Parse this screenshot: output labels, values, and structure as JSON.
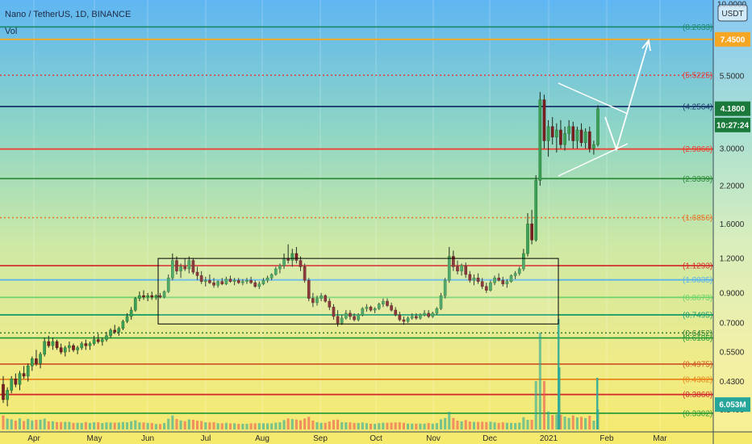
{
  "header": {
    "symbol_line": "Nano / TetherUS, 1D, BINANCE",
    "volume_label": "Vol",
    "currency_badge": "USDT"
  },
  "chart_data": {
    "type": "candlestick",
    "title": "Nano / TetherUS, 1D, BINANCE",
    "y_scale": "log",
    "ylim": [
      0.33,
      10.0
    ],
    "y_ticks": [
      {
        "value": 10.0,
        "label": "10.0000"
      },
      {
        "value": 5.5,
        "label": "5.5000"
      },
      {
        "value": 3.0,
        "label": "3.0000"
      },
      {
        "value": 2.2,
        "label": "2.2000"
      },
      {
        "value": 1.6,
        "label": "1.6000"
      },
      {
        "value": 1.2,
        "label": "1.2000"
      },
      {
        "value": 0.9,
        "label": "0.9000"
      },
      {
        "value": 0.7,
        "label": "0.7000"
      },
      {
        "value": 0.55,
        "label": "0.5500"
      },
      {
        "value": 0.43,
        "label": "0.4300"
      },
      {
        "value": 0.34,
        "label": "0.3400"
      }
    ],
    "x_ticks": [
      "Apr",
      "May",
      "Jun",
      "Jul",
      "Aug",
      "Sep",
      "Oct",
      "Nov",
      "Dec",
      "2021",
      "Feb",
      "Mar"
    ],
    "fib_levels": [
      {
        "value": 8.2633,
        "label": "(8.2633)",
        "color": "#1e8a6e",
        "style": "solid"
      },
      {
        "value": 5.5225,
        "label": "(5.5225)",
        "color": "#e53935",
        "style": "dotted"
      },
      {
        "value": 4.2564,
        "label": "(4.2564)",
        "color": "#1c3d6e",
        "style": "solid"
      },
      {
        "value": 2.9866,
        "label": "(2.9866)",
        "color": "#ef3b2c",
        "style": "solid"
      },
      {
        "value": 2.3339,
        "label": "(2.3339)",
        "color": "#2e8b3a",
        "style": "solid"
      },
      {
        "value": 1.6856,
        "label": "(1.6856)",
        "color": "#e6762a",
        "style": "dotted"
      },
      {
        "value": 1.1293,
        "label": "(1.1293)",
        "color": "#d32f2f",
        "style": "solid"
      },
      {
        "value": 1.0035,
        "label": "(1.0035)",
        "color": "#5ab4e8",
        "style": "solid"
      },
      {
        "value": 0.8673,
        "label": "(0.8673)",
        "color": "#6ed36e",
        "style": "solid"
      },
      {
        "value": 0.7495,
        "label": "(0.7495)",
        "color": "#1f9e6a",
        "style": "solid"
      },
      {
        "value": 0.6452,
        "label": "(0.6452)",
        "color": "#2e7d32",
        "style": "dotted"
      },
      {
        "value": 0.6186,
        "label": "(0.6186)",
        "color": "#2e9b3a",
        "style": "solid"
      },
      {
        "value": 0.4975,
        "label": "(0.4975)",
        "color": "#d05a2a",
        "style": "solid"
      },
      {
        "value": 0.4382,
        "label": "(0.4382)",
        "color": "#e8861c",
        "style": "solid"
      },
      {
        "value": 0.386,
        "label": "(0.3860)",
        "color": "#d32f2f",
        "style": "solid"
      },
      {
        "value": 0.3302,
        "label": "(0.3302)",
        "color": "#2e9b3a",
        "style": "solid"
      }
    ],
    "price_tags": [
      {
        "value": 7.45,
        "label": "7.4500",
        "color": "#f5a623"
      },
      {
        "value": 4.18,
        "label": "4.1800",
        "color": "#1b7a3b"
      },
      {
        "value": 3.65,
        "label": "10:27:24",
        "color": "#1b7a3b"
      },
      {
        "value": 0.355,
        "label": "6.053M",
        "color": "#26a69a"
      }
    ],
    "target_level": 7.45,
    "candles_ohlc": [
      [
        0.42,
        0.45,
        0.36,
        0.37
      ],
      [
        0.37,
        0.41,
        0.35,
        0.4
      ],
      [
        0.4,
        0.45,
        0.39,
        0.44
      ],
      [
        0.44,
        0.46,
        0.41,
        0.42
      ],
      [
        0.42,
        0.47,
        0.4,
        0.46
      ],
      [
        0.46,
        0.49,
        0.44,
        0.45
      ],
      [
        0.45,
        0.5,
        0.43,
        0.49
      ],
      [
        0.49,
        0.53,
        0.47,
        0.52
      ],
      [
        0.52,
        0.56,
        0.49,
        0.5
      ],
      [
        0.5,
        0.55,
        0.48,
        0.54
      ],
      [
        0.54,
        0.62,
        0.53,
        0.6
      ],
      [
        0.6,
        0.63,
        0.57,
        0.58
      ],
      [
        0.58,
        0.62,
        0.56,
        0.6
      ],
      [
        0.6,
        0.61,
        0.56,
        0.57
      ],
      [
        0.57,
        0.59,
        0.54,
        0.55
      ],
      [
        0.55,
        0.58,
        0.53,
        0.57
      ],
      [
        0.57,
        0.6,
        0.55,
        0.58
      ],
      [
        0.58,
        0.59,
        0.55,
        0.56
      ],
      [
        0.56,
        0.58,
        0.54,
        0.57
      ],
      [
        0.57,
        0.6,
        0.56,
        0.59
      ],
      [
        0.59,
        0.61,
        0.56,
        0.58
      ],
      [
        0.58,
        0.6,
        0.56,
        0.59
      ],
      [
        0.59,
        0.63,
        0.58,
        0.61
      ],
      [
        0.61,
        0.64,
        0.59,
        0.6
      ],
      [
        0.6,
        0.62,
        0.58,
        0.61
      ],
      [
        0.61,
        0.65,
        0.6,
        0.63
      ],
      [
        0.63,
        0.67,
        0.62,
        0.66
      ],
      [
        0.66,
        0.69,
        0.64,
        0.65
      ],
      [
        0.65,
        0.68,
        0.63,
        0.67
      ],
      [
        0.67,
        0.72,
        0.66,
        0.71
      ],
      [
        0.71,
        0.76,
        0.7,
        0.74
      ],
      [
        0.74,
        0.8,
        0.72,
        0.78
      ],
      [
        0.78,
        0.87,
        0.77,
        0.86
      ],
      [
        0.86,
        0.91,
        0.84,
        0.88
      ],
      [
        0.88,
        0.92,
        0.85,
        0.87
      ],
      [
        0.87,
        0.9,
        0.84,
        0.88
      ],
      [
        0.88,
        0.91,
        0.85,
        0.87
      ],
      [
        0.87,
        0.89,
        0.85,
        0.88
      ],
      [
        0.88,
        0.9,
        0.86,
        0.87
      ],
      [
        0.87,
        0.92,
        0.86,
        0.91
      ],
      [
        0.91,
        1.05,
        0.9,
        1.02
      ],
      [
        1.02,
        1.25,
        1.0,
        1.18
      ],
      [
        1.18,
        1.22,
        1.05,
        1.08
      ],
      [
        1.08,
        1.15,
        1.02,
        1.12
      ],
      [
        1.12,
        1.2,
        1.08,
        1.1
      ],
      [
        1.1,
        1.22,
        1.06,
        1.18
      ],
      [
        1.18,
        1.2,
        1.05,
        1.07
      ],
      [
        1.07,
        1.12,
        1.0,
        1.04
      ],
      [
        1.04,
        1.08,
        0.97,
        0.99
      ],
      [
        0.99,
        1.03,
        0.95,
        1.0
      ],
      [
        1.0,
        1.05,
        0.97,
        0.98
      ],
      [
        0.98,
        1.02,
        0.94,
        0.96
      ],
      [
        0.96,
        1.0,
        0.94,
        0.99
      ],
      [
        0.99,
        1.02,
        0.96,
        0.97
      ],
      [
        0.97,
        1.03,
        0.96,
        1.01
      ],
      [
        1.01,
        1.04,
        0.98,
        0.99
      ],
      [
        0.99,
        1.02,
        0.96,
        1.0
      ],
      [
        1.0,
        1.02,
        0.97,
        0.98
      ],
      [
        0.98,
        1.01,
        0.96,
        0.99
      ],
      [
        0.99,
        1.02,
        0.97,
        1.0
      ],
      [
        1.0,
        1.03,
        0.97,
        0.98
      ],
      [
        0.98,
        1.0,
        0.94,
        0.95
      ],
      [
        0.95,
        0.99,
        0.93,
        0.97
      ],
      [
        0.97,
        1.02,
        0.96,
        1.0
      ],
      [
        1.0,
        1.04,
        0.98,
        1.02
      ],
      [
        1.02,
        1.06,
        1.0,
        1.05
      ],
      [
        1.05,
        1.12,
        1.04,
        1.1
      ],
      [
        1.1,
        1.15,
        1.06,
        1.13
      ],
      [
        1.13,
        1.25,
        1.1,
        1.2
      ],
      [
        1.2,
        1.35,
        1.15,
        1.18
      ],
      [
        1.18,
        1.3,
        1.12,
        1.25
      ],
      [
        1.25,
        1.32,
        1.15,
        1.18
      ],
      [
        1.18,
        1.22,
        1.08,
        1.12
      ],
      [
        1.12,
        1.15,
        0.98,
        1.0
      ],
      [
        1.0,
        1.02,
        0.84,
        0.86
      ],
      [
        0.86,
        0.9,
        0.8,
        0.83
      ],
      [
        0.83,
        0.88,
        0.81,
        0.86
      ],
      [
        0.86,
        0.9,
        0.84,
        0.88
      ],
      [
        0.88,
        0.89,
        0.83,
        0.84
      ],
      [
        0.84,
        0.86,
        0.78,
        0.8
      ],
      [
        0.8,
        0.82,
        0.72,
        0.74
      ],
      [
        0.74,
        0.78,
        0.68,
        0.7
      ],
      [
        0.7,
        0.75,
        0.69,
        0.73
      ],
      [
        0.73,
        0.78,
        0.72,
        0.76
      ],
      [
        0.76,
        0.78,
        0.72,
        0.74
      ],
      [
        0.74,
        0.76,
        0.71,
        0.72
      ],
      [
        0.72,
        0.76,
        0.71,
        0.75
      ],
      [
        0.75,
        0.8,
        0.74,
        0.79
      ],
      [
        0.79,
        0.82,
        0.77,
        0.8
      ],
      [
        0.8,
        0.81,
        0.77,
        0.78
      ],
      [
        0.78,
        0.8,
        0.76,
        0.79
      ],
      [
        0.79,
        0.83,
        0.78,
        0.82
      ],
      [
        0.82,
        0.86,
        0.8,
        0.84
      ],
      [
        0.84,
        0.86,
        0.8,
        0.81
      ],
      [
        0.81,
        0.83,
        0.77,
        0.78
      ],
      [
        0.78,
        0.8,
        0.74,
        0.75
      ],
      [
        0.75,
        0.77,
        0.71,
        0.72
      ],
      [
        0.72,
        0.74,
        0.69,
        0.71
      ],
      [
        0.71,
        0.74,
        0.7,
        0.73
      ],
      [
        0.73,
        0.76,
        0.72,
        0.74
      ],
      [
        0.74,
        0.76,
        0.72,
        0.73
      ],
      [
        0.73,
        0.76,
        0.72,
        0.75
      ],
      [
        0.75,
        0.78,
        0.74,
        0.76
      ],
      [
        0.76,
        0.78,
        0.73,
        0.74
      ],
      [
        0.74,
        0.77,
        0.73,
        0.76
      ],
      [
        0.76,
        0.8,
        0.75,
        0.79
      ],
      [
        0.79,
        0.9,
        0.78,
        0.88
      ],
      [
        0.88,
        1.02,
        0.86,
        1.0
      ],
      [
        1.0,
        1.32,
        0.98,
        1.22
      ],
      [
        1.22,
        1.28,
        1.08,
        1.12
      ],
      [
        1.12,
        1.18,
        1.05,
        1.08
      ],
      [
        1.08,
        1.15,
        1.04,
        1.13
      ],
      [
        1.13,
        1.16,
        1.02,
        1.05
      ],
      [
        1.05,
        1.08,
        0.98,
        1.0
      ],
      [
        1.0,
        1.05,
        0.96,
        1.02
      ],
      [
        1.02,
        1.06,
        0.97,
        0.99
      ],
      [
        0.99,
        1.02,
        0.93,
        0.95
      ],
      [
        0.95,
        0.98,
        0.9,
        0.92
      ],
      [
        0.92,
        1.0,
        0.91,
        0.98
      ],
      [
        0.98,
        1.04,
        0.96,
        1.02
      ],
      [
        1.02,
        1.06,
        0.99,
        1.0
      ],
      [
        1.0,
        1.03,
        0.95,
        0.97
      ],
      [
        0.97,
        1.01,
        0.94,
        0.99
      ],
      [
        0.99,
        1.05,
        0.98,
        1.04
      ],
      [
        1.04,
        1.08,
        1.01,
        1.06
      ],
      [
        1.06,
        1.12,
        1.04,
        1.1
      ],
      [
        1.1,
        1.3,
        1.08,
        1.25
      ],
      [
        1.25,
        1.75,
        1.22,
        1.6
      ],
      [
        1.6,
        1.8,
        1.35,
        1.4
      ],
      [
        1.4,
        2.4,
        1.38,
        2.3
      ],
      [
        2.3,
        4.8,
        2.2,
        4.5
      ],
      [
        4.5,
        4.7,
        3.0,
        3.2
      ],
      [
        3.2,
        3.8,
        2.8,
        3.6
      ],
      [
        3.6,
        3.9,
        3.1,
        3.3
      ],
      [
        3.3,
        3.7,
        2.9,
        3.5
      ],
      [
        3.5,
        3.8,
        3.0,
        3.1
      ],
      [
        3.1,
        3.6,
        2.95,
        3.4
      ],
      [
        3.4,
        3.8,
        3.2,
        3.6
      ],
      [
        3.6,
        3.75,
        3.0,
        3.2
      ],
      [
        3.2,
        3.6,
        3.0,
        3.5
      ],
      [
        3.5,
        3.7,
        3.05,
        3.15
      ],
      [
        3.15,
        3.55,
        3.0,
        3.45
      ],
      [
        3.45,
        3.6,
        2.9,
        3.0
      ],
      [
        3.0,
        3.2,
        2.85,
        3.1
      ],
      [
        3.1,
        4.3,
        3.05,
        4.18
      ]
    ]
  }
}
